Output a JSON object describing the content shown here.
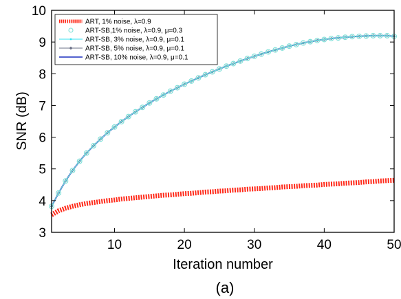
{
  "chart_data": {
    "type": "line",
    "xlabel": "Iteration number",
    "ylabel": "SNR (dB)",
    "caption": "(a)",
    "xlim": [
      1,
      50
    ],
    "ylim": [
      3,
      10
    ],
    "xticks": [
      10,
      20,
      30,
      40,
      50
    ],
    "yticks": [
      3,
      4,
      5,
      6,
      7,
      8,
      9,
      10
    ],
    "legend_position": "top-left",
    "grid": false,
    "x": [
      1,
      2,
      3,
      4,
      5,
      6,
      7,
      8,
      9,
      10,
      11,
      12,
      13,
      14,
      15,
      16,
      17,
      18,
      19,
      20,
      21,
      22,
      23,
      24,
      25,
      26,
      27,
      28,
      29,
      30,
      31,
      32,
      33,
      34,
      35,
      36,
      37,
      38,
      39,
      40,
      41,
      42,
      43,
      44,
      45,
      46,
      47,
      48,
      49,
      50
    ],
    "series": [
      {
        "name": "ART, 1% noise, λ=0.9",
        "color": "#ff2a1a",
        "style": "thick-dotted",
        "values": [
          3.55,
          3.68,
          3.76,
          3.82,
          3.87,
          3.91,
          3.94,
          3.97,
          4.0,
          4.02,
          4.05,
          4.07,
          4.09,
          4.11,
          4.13,
          4.15,
          4.17,
          4.18,
          4.2,
          4.22,
          4.23,
          4.25,
          4.27,
          4.28,
          4.3,
          4.31,
          4.33,
          4.34,
          4.36,
          4.37,
          4.38,
          4.4,
          4.41,
          4.43,
          4.44,
          4.45,
          4.47,
          4.48,
          4.49,
          4.51,
          4.52,
          4.53,
          4.55,
          4.56,
          4.57,
          4.59,
          4.6,
          4.62,
          4.63,
          4.64
        ]
      },
      {
        "name": "ART-SB,1% noise, λ=0.9, μ=0.3",
        "color": "#7fe0d8",
        "style": "circle-markers",
        "values": [
          3.82,
          4.24,
          4.62,
          4.95,
          5.24,
          5.5,
          5.73,
          5.94,
          6.14,
          6.32,
          6.49,
          6.65,
          6.8,
          6.94,
          7.08,
          7.21,
          7.33,
          7.45,
          7.56,
          7.67,
          7.77,
          7.87,
          7.97,
          8.06,
          8.15,
          8.24,
          8.32,
          8.4,
          8.48,
          8.55,
          8.62,
          8.69,
          8.75,
          8.81,
          8.87,
          8.92,
          8.97,
          9.01,
          9.05,
          9.08,
          9.11,
          9.13,
          9.15,
          9.17,
          9.18,
          9.19,
          9.2,
          9.2,
          9.2,
          9.18
        ]
      },
      {
        "name": "ART-SB, 3% noise, λ=0.9, μ=0.1",
        "color": "#33e0f0",
        "style": "dot-markers",
        "values": [
          3.82,
          4.24,
          4.62,
          4.95,
          5.24,
          5.5,
          5.73,
          5.94,
          6.14,
          6.32,
          6.49,
          6.65,
          6.8,
          6.94,
          7.08,
          7.21,
          7.33,
          7.45,
          7.56,
          7.67,
          7.77,
          7.87,
          7.97,
          8.06,
          8.15,
          8.24,
          8.32,
          8.4,
          8.48,
          8.55,
          8.62,
          8.69,
          8.75,
          8.81,
          8.87,
          8.92,
          8.97,
          9.01,
          9.05,
          9.08,
          9.11,
          9.13,
          9.15,
          9.17,
          9.18,
          9.19,
          9.2,
          9.2,
          9.2,
          9.18
        ]
      },
      {
        "name": "ART-SB, 5% noise, λ=0.9, μ=0.1",
        "color": "#6a6f86",
        "style": "diamond-markers",
        "values": [
          3.82,
          4.24,
          4.62,
          4.95,
          5.24,
          5.5,
          5.73,
          5.94,
          6.14,
          6.32,
          6.49,
          6.65,
          6.8,
          6.94,
          7.08,
          7.21,
          7.33,
          7.45,
          7.56,
          7.67,
          7.77,
          7.87,
          7.97,
          8.06,
          8.15,
          8.24,
          8.32,
          8.4,
          8.48,
          8.55,
          8.62,
          8.69,
          8.75,
          8.81,
          8.87,
          8.92,
          8.97,
          9.01,
          9.05,
          9.08,
          9.11,
          9.13,
          9.15,
          9.17,
          9.18,
          9.19,
          9.2,
          9.2,
          9.2,
          9.18
        ]
      },
      {
        "name": "ART-SB, 10% noise, λ=0.9, μ=0.1",
        "color": "#1a2fbf",
        "style": "solid",
        "values": [
          3.82,
          4.24,
          4.62,
          4.95,
          5.24,
          5.5,
          5.73,
          5.94,
          6.14,
          6.32,
          6.49,
          6.65,
          6.8,
          6.94,
          7.08,
          7.21,
          7.33,
          7.45,
          7.56,
          7.67,
          7.77,
          7.87,
          7.97,
          8.06,
          8.15,
          8.24,
          8.32,
          8.4,
          8.48,
          8.55,
          8.62,
          8.69,
          8.75,
          8.81,
          8.87,
          8.92,
          8.97,
          9.01,
          9.05,
          9.08,
          9.11,
          9.13,
          9.15,
          9.17,
          9.18,
          9.19,
          9.2,
          9.2,
          9.2,
          9.18
        ]
      }
    ]
  }
}
